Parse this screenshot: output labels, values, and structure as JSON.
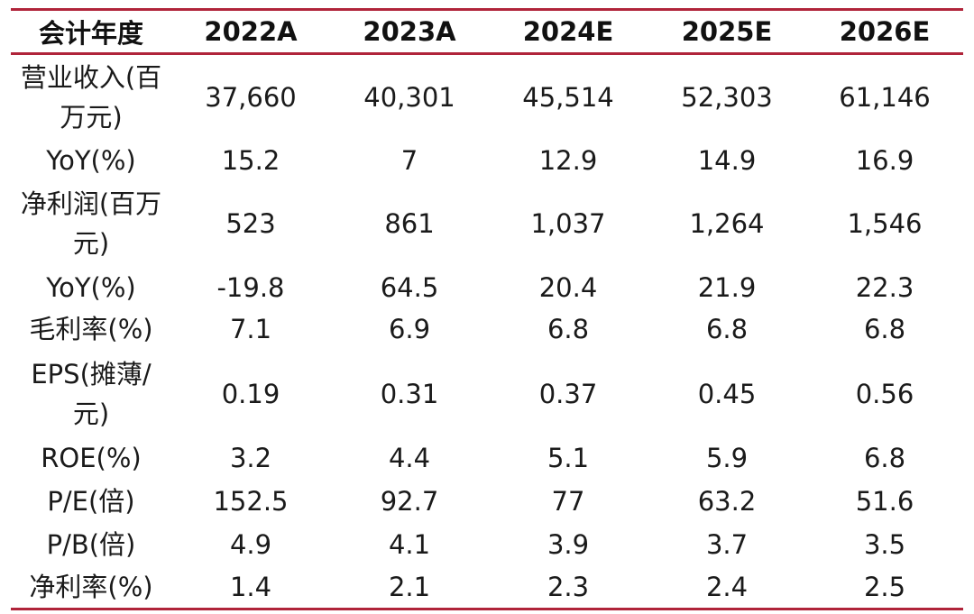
{
  "header": [
    "会计年度",
    "2022A",
    "2023A",
    "2024E",
    "2025E",
    "2026E"
  ],
  "rows": [
    {
      "label": "营业收入(百万元)",
      "values": [
        "37,660",
        "40,301",
        "45,514",
        "52,303",
        "61,146"
      ]
    },
    {
      "label": "YoY(%)",
      "values": [
        "15.2",
        "7",
        "12.9",
        "14.9",
        "16.9"
      ]
    },
    {
      "label": "净利润(百万元)",
      "values": [
        "523",
        "861",
        "1,037",
        "1,264",
        "1,546"
      ]
    },
    {
      "label": "YoY(%)",
      "values": [
        "-19.8",
        "64.5",
        "20.4",
        "21.9",
        "22.3"
      ]
    },
    {
      "label": "毛利率(%)",
      "values": [
        "7.1",
        "6.9",
        "6.8",
        "6.8",
        "6.8"
      ]
    },
    {
      "label": "EPS(摊薄/元)",
      "values": [
        "0.19",
        "0.31",
        "0.37",
        "0.45",
        "0.56"
      ]
    },
    {
      "label": "ROE(%)",
      "values": [
        "3.2",
        "4.4",
        "5.1",
        "5.9",
        "6.8"
      ]
    },
    {
      "label": "P/E(倍)",
      "values": [
        "152.5",
        "92.7",
        "77",
        "63.2",
        "51.6"
      ]
    },
    {
      "label": "P/B(倍)",
      "values": [
        "4.9",
        "4.1",
        "3.9",
        "3.7",
        "3.5"
      ]
    },
    {
      "label": "净利率(%)",
      "values": [
        "1.4",
        "2.1",
        "2.3",
        "2.4",
        "2.5"
      ]
    }
  ],
  "colors": {
    "rule": "#b0243a",
    "text": "#1a1a1a"
  }
}
